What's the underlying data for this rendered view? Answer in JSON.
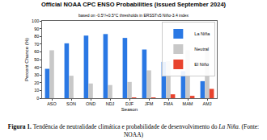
{
  "chart_data": {
    "type": "bar",
    "title": "Official NOAA CPC ENSO Probabilities (issued September 2024)",
    "subtitle": "based on -0.5°/+0.5°C thresholds in ERSSTv5 Niño-3.4 index",
    "x_label": "Season",
    "y_label": "Percent Chance (%)",
    "categories": [
      "ASO",
      "SON",
      "OND",
      "NDJ",
      "DJF",
      "JFM",
      "FMA",
      "MAM",
      "AMJ"
    ],
    "series": [
      {
        "name": "La Niña",
        "color": "#2a78e4",
        "values": [
          38,
          71,
          81,
          83,
          78,
          63,
          47,
          35,
          22
        ]
      },
      {
        "name": "Neutral",
        "color": "#c8c8c8",
        "values": [
          62,
          29,
          19,
          17,
          21,
          36,
          48,
          62,
          66
        ]
      },
      {
        "name": "El Niño",
        "color": "#e8432e",
        "values": [
          0,
          0,
          0,
          0,
          1,
          1,
          5,
          3,
          12
        ]
      }
    ],
    "ylim": [
      0,
      100
    ],
    "yticks": [
      0,
      10,
      20,
      30,
      40,
      50,
      60,
      70,
      80,
      90,
      100
    ],
    "grid": false,
    "legend": "upper right"
  },
  "caption": {
    "label": "Figura 1.",
    "text": "Tendência de neutralidade climática e probabilidade de desenvolvimento do",
    "emphasis": "La Niña",
    "source": ". (Fonte: NOAA)"
  }
}
